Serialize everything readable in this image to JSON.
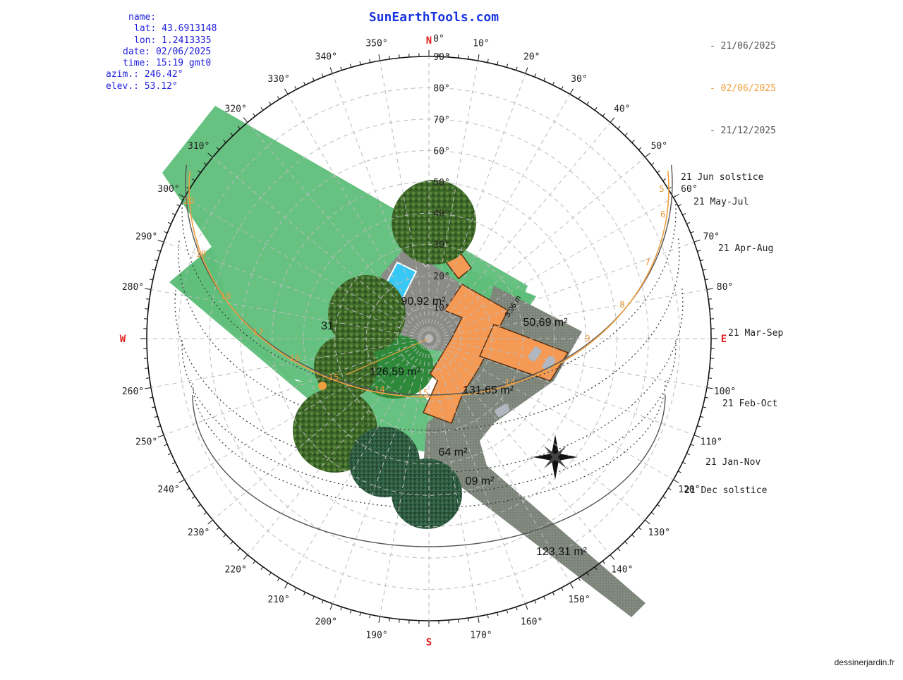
{
  "brand": "SunEarthTools.com",
  "info": {
    "name": "name:",
    "lat": "lat: 43.6913148",
    "lon": "lon: 1.2413335",
    "date": "date: 02/06/2025",
    "time": "time: 15:19 gmt0",
    "azim": "azim.: 246.42°",
    "elev": "elev.: 53.12°"
  },
  "legend": [
    {
      "label": "- 21/06/2025",
      "color": "#555555"
    },
    {
      "label": "- 02/06/2025",
      "color": "#f0a040"
    },
    {
      "label": "- 21/12/2025",
      "color": "#555555"
    }
  ],
  "compass": {
    "N": "N",
    "E": "E",
    "S": "S",
    "W": "W"
  },
  "azimuth_ticks": [
    "0°",
    "10°",
    "20°",
    "30°",
    "40°",
    "50°",
    "60°",
    "70°",
    "80°",
    "100°",
    "110°",
    "120°",
    "130°",
    "140°",
    "150°",
    "160°",
    "170°",
    "190°",
    "200°",
    "210°",
    "220°",
    "230°",
    "240°",
    "250°",
    "260°",
    "280°",
    "290°",
    "300°",
    "310°",
    "320°",
    "330°",
    "340°",
    "350°"
  ],
  "elevation_ticks": [
    "10°",
    "20°",
    "30°",
    "40°",
    "50°",
    "60°",
    "70°",
    "80°",
    "90°"
  ],
  "path_labels": [
    {
      "label": "21 Jun  solstice"
    },
    {
      "label": "21 May-Jul"
    },
    {
      "label": "21 Apr-Aug"
    },
    {
      "label": "21 Mar-Sep"
    },
    {
      "label": "21 Feb-Oct"
    },
    {
      "label": "21 Jan-Nov"
    },
    {
      "label": "21 Dec  solstice"
    }
  ],
  "areas": [
    "90,92 m²",
    "50,69 m²",
    "31",
    "126,59 m²",
    "131,65 m²",
    "64 m²",
    "09 m²",
    "123,31 m²"
  ],
  "dimension": "3,96 m",
  "hour_labels": [
    "5",
    "6",
    "7",
    "8",
    "9",
    "14",
    "15",
    "16",
    "17",
    "18",
    "19",
    "20",
    "14",
    "15"
  ],
  "sun_position": {
    "azimuth": 246.42,
    "elevation": 53.12
  },
  "colors": {
    "lawn": "#5fbf7a",
    "roof": "#f5a05a",
    "paving": "#8a8f86",
    "text_blue": "#2222dd",
    "brand": "#1a35e0",
    "cardinal": "#e02020",
    "sun_path_today": "#f0a040"
  },
  "credit": "dessinerjardin.fr"
}
